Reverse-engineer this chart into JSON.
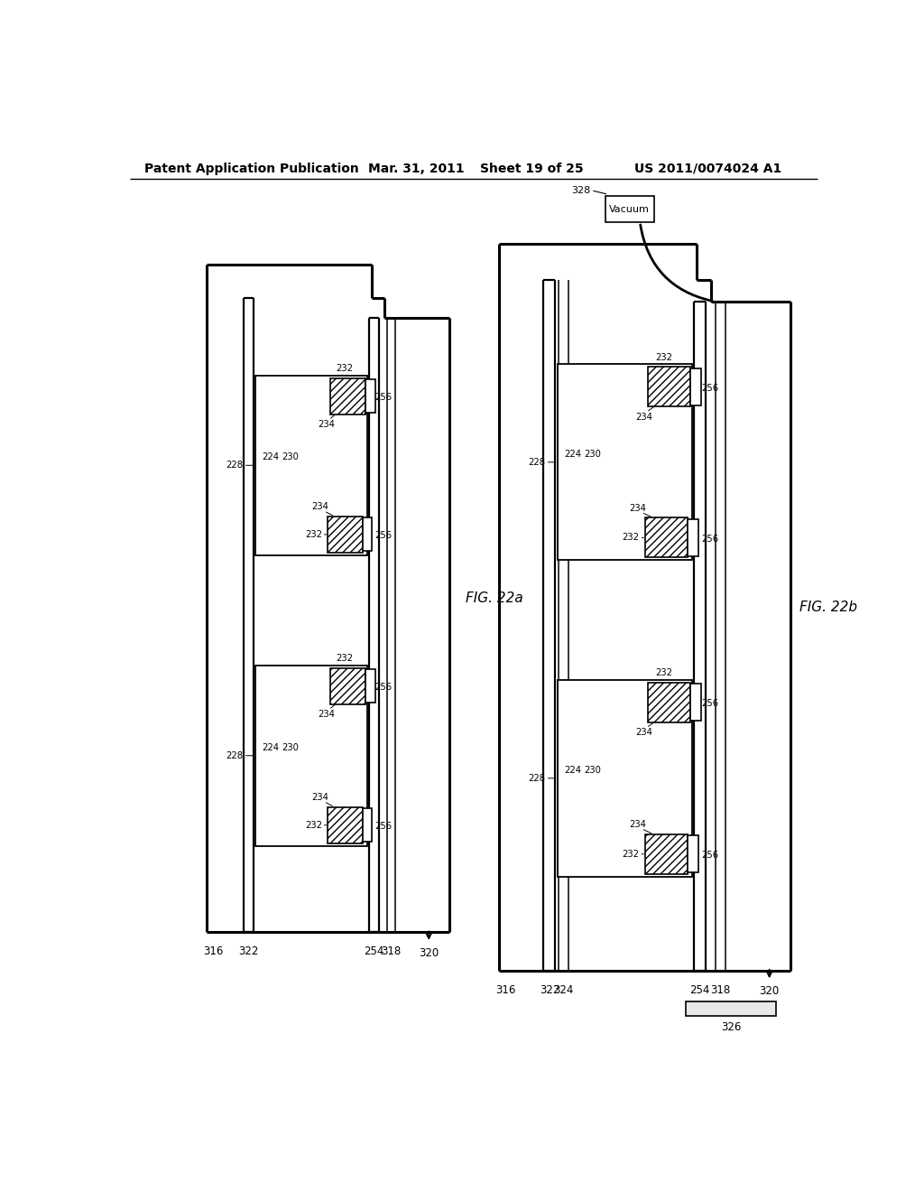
{
  "bg_color": "#ffffff",
  "line_color": "#000000",
  "header_text": "Patent Application Publication",
  "header_date": "Mar. 31, 2011",
  "header_sheet": "Sheet 19 of 25",
  "header_patent": "US 2011/0074024 A1",
  "fig_label_a": "FIG. 22a",
  "fig_label_b": "FIG. 22b"
}
